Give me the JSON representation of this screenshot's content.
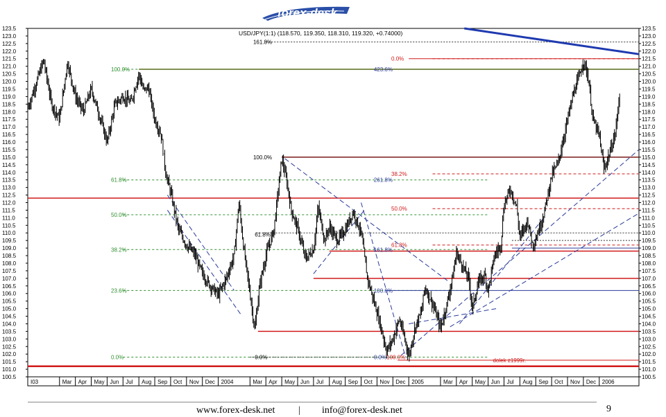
{
  "brand": {
    "logo_text": "forex-desk"
  },
  "footer": {
    "website": "www.forex-desk.net",
    "separator": "|",
    "email": "info@forex-desk.net",
    "page_number": "9"
  },
  "chart_data": {
    "type": "candlestick",
    "title": "USD/JPY(1:1) (118.570, 119.350, 118.310, 119.320, +0.74000)",
    "ylim": [
      100.5,
      123.5
    ],
    "yticks": [
      123.5,
      123.0,
      122.5,
      122.0,
      121.5,
      121.0,
      120.5,
      120.0,
      119.5,
      119.0,
      118.5,
      118.0,
      117.5,
      117.0,
      116.5,
      116.0,
      115.5,
      115.0,
      114.5,
      114.0,
      113.5,
      113.0,
      112.5,
      112.0,
      111.5,
      111.0,
      110.5,
      110.0,
      109.5,
      109.0,
      108.5,
      108.0,
      107.5,
      107.0,
      106.5,
      106.0,
      105.5,
      105.0,
      104.5,
      104.0,
      103.5,
      103.0,
      102.5,
      102.0,
      101.5,
      101.0,
      100.5
    ],
    "ytick_labels": [
      "123.5",
      "123.0",
      "122.5",
      "122.0",
      "121.5",
      "121.0",
      "120.5",
      "120.0",
      "119.5",
      "119.0",
      "118.5",
      "118.0",
      "117.5",
      "117.0",
      "116.5",
      "116.0",
      "115.5",
      "115.0",
      "114.5",
      "114.0",
      "113.5",
      "113.0",
      "112.5",
      "112.0",
      "111.5",
      "111.0",
      "110.5",
      "110.0",
      "109.5",
      "109.0",
      "108.5",
      "108.0",
      "107.5",
      "107.0",
      "106.5",
      "106.0",
      "105.5",
      "105.0",
      "104.5",
      "104.0",
      "103.5",
      "103.0",
      "102.5",
      "102.0",
      "101.5",
      "101.0",
      "100.5"
    ],
    "xticks": [
      {
        "label": "I03",
        "m": 0
      },
      {
        "label": "Mar",
        "m": 2
      },
      {
        "label": "Apr",
        "m": 3
      },
      {
        "label": "May",
        "m": 4
      },
      {
        "label": "Jun",
        "m": 5
      },
      {
        "label": "Jul",
        "m": 6
      },
      {
        "label": "Aug",
        "m": 7
      },
      {
        "label": "Sep",
        "m": 8
      },
      {
        "label": "Oct",
        "m": 9
      },
      {
        "label": "Nov",
        "m": 10
      },
      {
        "label": "Dec",
        "m": 11
      },
      {
        "label": "2004",
        "m": 12
      },
      {
        "label": "Mar",
        "m": 14
      },
      {
        "label": "Apr",
        "m": 15
      },
      {
        "label": "May",
        "m": 16
      },
      {
        "label": "Jun",
        "m": 17
      },
      {
        "label": "Jul",
        "m": 18
      },
      {
        "label": "Aug",
        "m": 19
      },
      {
        "label": "Sep",
        "m": 20
      },
      {
        "label": "Oct",
        "m": 21
      },
      {
        "label": "Nov",
        "m": 22
      },
      {
        "label": "Dec",
        "m": 23
      },
      {
        "label": "2005",
        "m": 24
      },
      {
        "label": "Mar",
        "m": 26
      },
      {
        "label": "Apr",
        "m": 27
      },
      {
        "label": "May",
        "m": 28
      },
      {
        "label": "Jun",
        "m": 29
      },
      {
        "label": "Jul",
        "m": 30
      },
      {
        "label": "Aug",
        "m": 31
      },
      {
        "label": "Sep",
        "m": 32
      },
      {
        "label": "Oct",
        "m": 33
      },
      {
        "label": "Nov",
        "m": 34
      },
      {
        "label": "Dec",
        "m": 35
      },
      {
        "label": "2006",
        "m": 36
      }
    ],
    "price_path": [
      [
        0,
        118.2
      ],
      [
        0.5,
        119.8
      ],
      [
        1,
        121.4
      ],
      [
        1.5,
        118.5
      ],
      [
        2,
        117.5
      ],
      [
        2.5,
        121.3
      ],
      [
        3,
        119.0
      ],
      [
        3.5,
        118.0
      ],
      [
        4,
        119.5
      ],
      [
        4.5,
        117.8
      ],
      [
        5,
        116.0
      ],
      [
        5.5,
        118.5
      ],
      [
        6,
        119.0
      ],
      [
        6.5,
        118.6
      ],
      [
        7,
        120.5
      ],
      [
        7.3,
        119.4
      ],
      [
        7.6,
        119.6
      ],
      [
        8,
        117.5
      ],
      [
        8.4,
        116.5
      ],
      [
        8.7,
        113.9
      ],
      [
        9,
        112.7
      ],
      [
        9.5,
        110.2
      ],
      [
        10,
        109.2
      ],
      [
        10.5,
        108.6
      ],
      [
        11,
        107.3
      ],
      [
        11.5,
        106.5
      ],
      [
        12,
        105.9
      ],
      [
        12.5,
        107.0
      ],
      [
        13,
        108.5
      ],
      [
        13.3,
        112.0
      ],
      [
        13.6,
        109.0
      ],
      [
        14,
        106.0
      ],
      [
        14.3,
        103.6
      ],
      [
        14.6,
        106.5
      ],
      [
        15,
        108.5
      ],
      [
        15.5,
        110.2
      ],
      [
        16,
        114.9
      ],
      [
        16.3,
        113.5
      ],
      [
        16.6,
        111.5
      ],
      [
        17,
        110.3
      ],
      [
        17.5,
        108.3
      ],
      [
        18,
        108.9
      ],
      [
        18.3,
        111.7
      ],
      [
        18.7,
        109.5
      ],
      [
        19,
        110.4
      ],
      [
        19.5,
        109.5
      ],
      [
        20,
        110.2
      ],
      [
        20.5,
        111.4
      ],
      [
        21,
        110.0
      ],
      [
        21.4,
        107.0
      ],
      [
        21.8,
        105.5
      ],
      [
        22.2,
        104.0
      ],
      [
        22.6,
        102.2
      ],
      [
        23,
        103.0
      ],
      [
        23.4,
        104.3
      ],
      [
        23.8,
        102.8
      ],
      [
        24,
        101.8
      ],
      [
        24.4,
        103.8
      ],
      [
        24.8,
        104.8
      ],
      [
        25,
        106.4
      ],
      [
        25.4,
        105.6
      ],
      [
        25.8,
        104.4
      ],
      [
        26,
        103.7
      ],
      [
        26.4,
        105.3
      ],
      [
        26.8,
        107.3
      ],
      [
        27,
        108.7
      ],
      [
        27.4,
        107.8
      ],
      [
        27.8,
        106.9
      ],
      [
        28,
        105.0
      ],
      [
        28.4,
        106.8
      ],
      [
        28.8,
        107.2
      ],
      [
        29,
        106.2
      ],
      [
        29.4,
        108.5
      ],
      [
        29.8,
        109.2
      ],
      [
        30,
        111.9
      ],
      [
        30.4,
        112.9
      ],
      [
        30.8,
        111.7
      ],
      [
        31,
        109.7
      ],
      [
        31.5,
        110.8
      ],
      [
        31.8,
        109.2
      ],
      [
        32,
        109.6
      ],
      [
        32.5,
        111.2
      ],
      [
        33,
        113.8
      ],
      [
        33.4,
        114.6
      ],
      [
        33.8,
        116.5
      ],
      [
        34,
        117.5
      ],
      [
        34.4,
        119.3
      ],
      [
        34.8,
        120.5
      ],
      [
        35,
        121.4
      ],
      [
        35.3,
        120.3
      ],
      [
        35.6,
        117.5
      ],
      [
        36,
        116.4
      ],
      [
        36.3,
        114.2
      ],
      [
        36.6,
        115.1
      ],
      [
        37,
        116.5
      ],
      [
        37.3,
        119.3
      ]
    ],
    "fib_left": {
      "color": "#2f8f2f",
      "levels": [
        {
          "label": "100.0%",
          "price": 120.8
        },
        {
          "label": "61.8%",
          "price": 113.5
        },
        {
          "label": "50.0%",
          "price": 111.2
        },
        {
          "label": "38.2%",
          "price": 108.9
        },
        {
          "label": "23.6%",
          "price": 106.2
        },
        {
          "label": "0.0%",
          "price": 101.8
        }
      ]
    },
    "fib_right": {
      "color": "#d11a1a",
      "levels": [
        {
          "label": "0.0%",
          "price": 121.5
        },
        {
          "label": "38.2%",
          "price": 113.9
        },
        {
          "label": "50.0%",
          "price": 111.6
        },
        {
          "label": "61.8%",
          "price": 109.2
        }
      ]
    },
    "fib_mid": {
      "color": "#2a3a9a",
      "levels": [
        {
          "label": "423.6%",
          "price": 120.8,
          "m": 21.8
        },
        {
          "label": "261.8%",
          "price": 113.5,
          "m": 21.8
        },
        {
          "label": "161.8%",
          "price": 108.9,
          "m": 21.8
        },
        {
          "label": "100.0%",
          "price": 106.2,
          "m": 21.8
        },
        {
          "label": "0.0%",
          "price": 101.8,
          "m": 21.8
        }
      ]
    },
    "annotations": [
      {
        "text": "161.8%",
        "price": 122.6,
        "m": 14.2,
        "color": "#000000"
      },
      {
        "text": "100.0%",
        "price": 115.0,
        "m": 14.2,
        "color": "#000000"
      },
      {
        "text": "61.8%",
        "price": 109.9,
        "m": 14.3,
        "color": "#000000"
      },
      {
        "text": "0.0%",
        "price": 101.8,
        "m": 14.3,
        "color": "#000000"
      },
      {
        "text": "100.0%",
        "price": 101.8,
        "m": 22.6,
        "color": "#d11a1a"
      },
      {
        "text": "dolek z1999r.",
        "price": 101.6,
        "m": 29.3,
        "color": "#d11a1a"
      }
    ],
    "horizontal_lines": [
      {
        "price": 120.8,
        "m0": 7.0,
        "m1": 38.5,
        "color": "#5a6b1a",
        "width": 1.5,
        "dash": ""
      },
      {
        "price": 112.3,
        "m0": 0,
        "m1": 38.5,
        "color": "#d11a1a",
        "width": 1.5,
        "dash": ""
      },
      {
        "price": 101.2,
        "m0": 0,
        "m1": 38.5,
        "color": "#d11a1a",
        "width": 2.5,
        "dash": ""
      },
      {
        "price": 115.0,
        "m0": 16.0,
        "m1": 38.5,
        "color": "#7a1a1a",
        "width": 1.5,
        "dash": ""
      },
      {
        "price": 108.8,
        "m0": 19.0,
        "m1": 38.5,
        "color": "#d11a1a",
        "width": 1.5,
        "dash": ""
      },
      {
        "price": 107.0,
        "m0": 18.0,
        "m1": 38.5,
        "color": "#d11a1a",
        "width": 1.5,
        "dash": ""
      },
      {
        "price": 103.5,
        "m0": 14.5,
        "m1": 38.5,
        "color": "#d11a1a",
        "width": 1.5,
        "dash": ""
      },
      {
        "price": 109.0,
        "m0": 30.5,
        "m1": 38.5,
        "color": "#2a3a9a",
        "width": 1,
        "dash": ""
      },
      {
        "price": 106.2,
        "m0": 22.5,
        "m1": 38.5,
        "color": "#2a3a9a",
        "width": 1,
        "dash": ""
      },
      {
        "price": 121.5,
        "m0": 24.0,
        "m1": 38.5,
        "color": "#d11a1a",
        "width": 1,
        "dash": ""
      },
      {
        "price": 122.6,
        "m0": 15.0,
        "m1": 38.5,
        "color": "#333333",
        "width": 1,
        "dash": "2,2"
      },
      {
        "price": 110.0,
        "m0": 14.4,
        "m1": 38.5,
        "color": "#333333",
        "width": 1,
        "dash": "2,2"
      },
      {
        "price": 101.8,
        "m0": 14.0,
        "m1": 23.3,
        "color": "#333333",
        "width": 1,
        "dash": "2,2"
      },
      {
        "price": 109.5,
        "m0": 30.5,
        "m1": 38.5,
        "color": "#333333",
        "width": 1,
        "dash": "2,2"
      },
      {
        "price": 101.6,
        "m0": 23.3,
        "m1": 38.5,
        "color": "#d11a1a",
        "width": 1,
        "dash": ""
      }
    ],
    "trend_lines": [
      {
        "p": [
          [
            27.5,
            123.5
          ],
          [
            38.5,
            121.8
          ]
        ],
        "color": "#1f3ab0",
        "width": 3,
        "dash": ""
      },
      {
        "p": [
          [
            8.8,
            112.5
          ],
          [
            13.0,
            106.2
          ]
        ],
        "color": "#2a3a9a",
        "width": 1,
        "dash": "7,4"
      },
      {
        "p": [
          [
            8.8,
            111.5
          ],
          [
            13.5,
            104.5
          ]
        ],
        "color": "#2a3a9a",
        "width": 1,
        "dash": "7,4"
      },
      {
        "p": [
          [
            16.2,
            114.9
          ],
          [
            26.5,
            106.8
          ]
        ],
        "color": "#2a3a9a",
        "width": 1,
        "dash": "7,4"
      },
      {
        "p": [
          [
            18.0,
            107.3
          ],
          [
            21.2,
            111.5
          ]
        ],
        "color": "#2a3a9a",
        "width": 1,
        "dash": "7,4"
      },
      {
        "p": [
          [
            21.0,
            112.0
          ],
          [
            23.8,
            101.8
          ]
        ],
        "color": "#2a3a9a",
        "width": 1,
        "dash": "7,4"
      },
      {
        "p": [
          [
            24.0,
            104.0
          ],
          [
            29.5,
            105.0
          ]
        ],
        "color": "#2a3a9a",
        "width": 1,
        "dash": "7,4"
      },
      {
        "p": [
          [
            23.5,
            101.9
          ],
          [
            38.5,
            115.5
          ]
        ],
        "color": "#2a3a9a",
        "width": 1,
        "dash": "7,4"
      },
      {
        "p": [
          [
            26.6,
            103.8
          ],
          [
            38.5,
            111.3
          ]
        ],
        "color": "#2a3a9a",
        "width": 1,
        "dash": "7,4"
      },
      {
        "p": [
          [
            27.2,
            104.0
          ],
          [
            32.5,
            111.0
          ]
        ],
        "color": "#2a3a9a",
        "width": 1,
        "dash": "7,4"
      }
    ]
  }
}
